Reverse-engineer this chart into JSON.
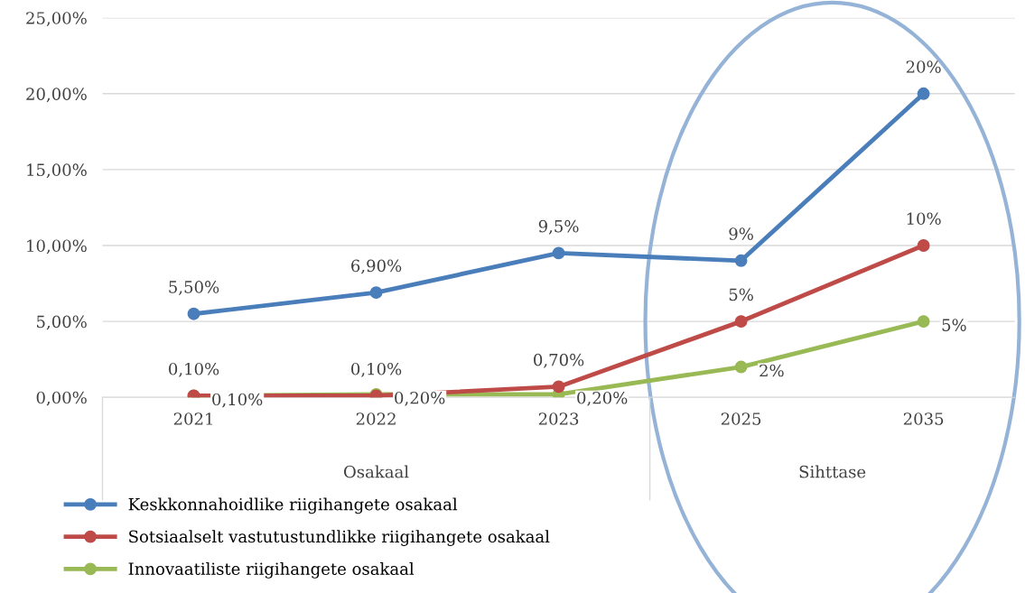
{
  "chart_data": {
    "type": "line",
    "categories": [
      "2021",
      "2022",
      "2023",
      "2025",
      "2035"
    ],
    "series": [
      {
        "name": "Keskkonnahoidlike riigihangete osakaal",
        "color": "#4a7ebb",
        "values": [
          5.5,
          6.9,
          9.5,
          9,
          20
        ],
        "value_labels": [
          "5,50%",
          "6,90%",
          "9,5%",
          "9%",
          "20%"
        ]
      },
      {
        "name": "Sotsiaalselt vastutustundlikke riigihangete osakaal",
        "color": "#be4b48",
        "values": [
          0.1,
          0.1,
          0.7,
          5,
          10
        ],
        "value_labels": [
          "0,10%",
          "0,10%",
          "0,70%",
          "5%",
          "10%"
        ]
      },
      {
        "name": "Innovaatiliste riigihangete osakaal",
        "color": "#98b954",
        "values": [
          0.1,
          0.2,
          0.2,
          2,
          5
        ],
        "value_labels": [
          "0,10%",
          "0,20%",
          "0,20%",
          "2%",
          "5%"
        ]
      }
    ],
    "ylim": [
      0,
      25
    ],
    "yticks": [
      {
        "value": 0,
        "label": "0,00%"
      },
      {
        "value": 5,
        "label": "5,00%"
      },
      {
        "value": 10,
        "label": "10,00%"
      },
      {
        "value": 15,
        "label": "15,00%"
      },
      {
        "value": 20,
        "label": "20,00%"
      },
      {
        "value": 25,
        "label": "25,00%"
      }
    ],
    "annotations": [
      "Osakaal",
      "Sihttase"
    ],
    "grid": "y",
    "legend": "bottom",
    "marker": "circle",
    "line_style": "solid"
  }
}
